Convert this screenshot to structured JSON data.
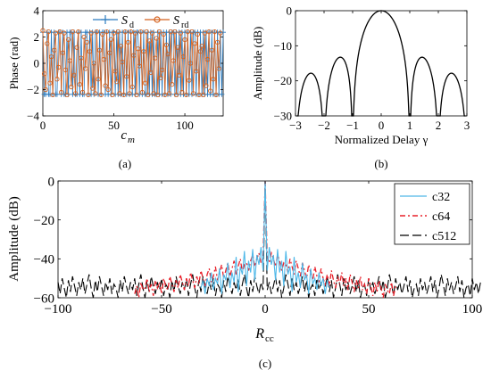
{
  "panels": {
    "a": {
      "caption": "(a)"
    },
    "b": {
      "caption": "(b)"
    },
    "c": {
      "caption": "(c)"
    }
  },
  "chart_data": [
    {
      "id": "a",
      "type": "line",
      "xlabel": "c",
      "xlabel_sub": "m",
      "ylabel": "Phase (rad)",
      "xlim": [
        0,
        127
      ],
      "ylim": [
        -4,
        4
      ],
      "xticks": [
        0,
        50,
        100
      ],
      "yticks": [
        -4,
        -2,
        0,
        2,
        4
      ],
      "grid": false,
      "legend": "top-center",
      "x_step": 1,
      "series": [
        {
          "name": "S",
          "name_sub": "d",
          "color": "#2b7bbf",
          "marker": "plus",
          "values": [
            2.36,
            -2.36,
            -2.36,
            2.36,
            -2.36,
            -2.36,
            2.36,
            -2.36,
            2.36,
            -2.36,
            -2.36,
            2.36,
            2.36,
            -2.36,
            2.36,
            -2.36,
            -2.36,
            2.36,
            -2.36,
            2.36,
            2.36,
            -2.36,
            2.36,
            -2.36,
            -2.36,
            2.36,
            -2.36,
            2.36,
            -2.36,
            -2.36,
            2.36,
            2.36,
            -2.36,
            2.36,
            -2.36,
            2.36,
            -2.36,
            2.36,
            2.36,
            -2.36,
            2.36,
            -2.36,
            2.36,
            2.36,
            -2.36,
            2.36,
            -2.36,
            2.36,
            -2.36,
            2.36,
            2.36,
            -2.36,
            2.36,
            -2.36,
            2.36,
            -2.36,
            2.36,
            -2.36,
            2.36,
            -2.36,
            2.36,
            -2.36,
            2.36,
            -2.36,
            2.36,
            -2.36,
            2.36,
            2.36,
            -2.36,
            2.36,
            -2.36,
            2.36,
            -2.36,
            -2.36,
            2.36,
            -2.36,
            2.36,
            -2.36,
            2.36,
            -2.36,
            -2.36,
            2.36,
            -2.36,
            2.36,
            -2.36,
            2.36,
            -2.36,
            2.36,
            -2.36,
            2.36,
            -2.36,
            2.36,
            2.36,
            -2.36,
            2.36,
            -2.36,
            2.36,
            -2.36,
            2.36,
            -2.36,
            2.36,
            -2.36,
            2.36,
            -2.36,
            2.36,
            -2.36,
            2.36,
            2.36,
            -2.36,
            2.36,
            -2.36,
            2.36,
            -2.36,
            2.36,
            -2.36,
            2.36,
            -2.36,
            2.36,
            -2.36,
            2.36,
            -2.36,
            2.36,
            -2.36,
            2.36,
            -2.36,
            2.36,
            -2.36,
            2.36
          ]
        },
        {
          "name": "S",
          "name_sub": "rd",
          "color": "#d4621f",
          "marker": "circle",
          "values": [
            2.5,
            -0.8,
            -2.0,
            1.5,
            2.4,
            -1.5,
            0.5,
            -2.4,
            1.0,
            2.3,
            -1.2,
            -0.3,
            2.4,
            -2.2,
            0.8,
            2.3,
            -0.5,
            -2.4,
            1.8,
            0.2,
            -1.8,
            2.4,
            -0.9,
            -2.3,
            1.2,
            2.4,
            -1.6,
            0.4,
            -2.2,
            2.0,
            -0.4,
            1.6,
            -2.4,
            0.9,
            2.3,
            -1.9,
            0.0,
            -2.3,
            2.4,
            -1.2,
            1.0,
            -2.4,
            2.2,
            0.3,
            -1.7,
            2.4,
            -2.0,
            0.8,
            1.8,
            -2.4,
            2.3,
            -0.6,
            -1.4,
            2.4,
            -2.3,
            1.3,
            0.1,
            -2.4,
            2.4,
            -1.0,
            1.6,
            -2.3,
            2.4,
            -1.8,
            0.6,
            2.3,
            -2.4,
            1.1,
            -0.2,
            2.4,
            -2.2,
            0.9,
            -1.5,
            2.4,
            -2.4,
            1.7,
            -0.7,
            2.3,
            -2.3,
            0.4,
            1.9,
            -2.4,
            2.4,
            -1.1,
            -0.5,
            2.2,
            -2.4,
            1.4,
            0.7,
            -2.3,
            2.4,
            -1.6,
            0.2,
            2.4,
            -2.4,
            1.2,
            -0.9,
            2.3,
            -2.2,
            0.5,
            1.8,
            -2.4,
            2.4,
            -1.3,
            0.0,
            2.4,
            -2.3,
            1.5,
            -0.6,
            2.2,
            -2.4,
            0.9,
            1.3,
            -2.4,
            2.3,
            -1.7,
            0.3,
            2.4,
            -2.1,
            1.0,
            -1.2,
            2.4,
            -2.4,
            1.6,
            -0.4,
            2.3
          ]
        }
      ]
    },
    {
      "id": "b",
      "type": "line",
      "xlabel": "Normalized Delay γ",
      "ylabel": "Amplitude (dB)",
      "xlim": [
        -3,
        3
      ],
      "ylim": [
        -30,
        0
      ],
      "xticks": [
        -3,
        -2,
        -1,
        0,
        1,
        2,
        3
      ],
      "yticks": [
        -30,
        -20,
        -10,
        0
      ],
      "grid": false,
      "series": [
        {
          "color": "#000000",
          "formula": "20*log10(|sinc(x)|)",
          "x_range": [
            -2.95,
            2.95
          ]
        }
      ]
    },
    {
      "id": "c",
      "type": "line",
      "xlabel": "R",
      "xlabel_sub": "cc",
      "ylabel": "Amplitude (dB)",
      "xlim": [
        -100,
        100
      ],
      "ylim": [
        -60,
        0
      ],
      "xticks": [
        -100,
        -50,
        0,
        50,
        100
      ],
      "yticks": [
        -60,
        -40,
        -20,
        0
      ],
      "grid": false,
      "legend": "top-right",
      "series": [
        {
          "name": "c32",
          "color": "#4fb8e8",
          "dash": "solid",
          "x_start": -31,
          "values": [
            -55,
            -51,
            -58,
            -50,
            -54,
            -47,
            -56,
            -50,
            -53,
            -45,
            -58,
            -48,
            -51,
            -42,
            -55,
            -47,
            -52,
            -39,
            -57,
            -44,
            -48,
            -36,
            -54,
            -41,
            -47,
            -35,
            -51,
            -38,
            -43,
            -34,
            -46,
            0,
            -46,
            -34,
            -43,
            -38,
            -51,
            -35,
            -47,
            -41,
            -54,
            -36,
            -48,
            -44,
            -57,
            -39,
            -52,
            -47,
            -55,
            -42,
            -51,
            -48,
            -58,
            -45,
            -53,
            -50,
            -56,
            -47,
            -54,
            -50,
            -58,
            -51,
            -55
          ]
        },
        {
          "name": "c64",
          "color": "#e8202a",
          "dash": "6,3,2,3",
          "x_start": -63,
          "values": [
            -58,
            -54,
            -60,
            -52,
            -56,
            -55,
            -50,
            -57,
            -53,
            -59,
            -51,
            -55,
            -52,
            -58,
            -50,
            -54,
            -56,
            -49,
            -53,
            -57,
            -51,
            -55,
            -48,
            -52,
            -56,
            -50,
            -54,
            -47,
            -51,
            -55,
            -49,
            -53,
            -46,
            -50,
            -54,
            -48,
            -45,
            -52,
            -49,
            -44,
            -51,
            -47,
            -43,
            -50,
            -46,
            -42,
            -49,
            -45,
            -41,
            -48,
            -44,
            -40,
            -47,
            -43,
            -42,
            -46,
            -41,
            -38,
            -44,
            -40,
            -37,
            -42,
            -39,
            0,
            -39,
            -42,
            -37,
            -40,
            -44,
            -38,
            -41,
            -46,
            -42,
            -43,
            -47,
            -40,
            -44,
            -48,
            -41,
            -45,
            -49,
            -42,
            -46,
            -50,
            -43,
            -47,
            -51,
            -44,
            -49,
            -52,
            -45,
            -50,
            -53,
            -48,
            -54,
            -46,
            -51,
            -55,
            -49,
            -53,
            -47,
            -54,
            -50,
            -56,
            -48,
            -52,
            -57,
            -51,
            -55,
            -49,
            -56,
            -53,
            -58,
            -50,
            -54,
            -59,
            -52,
            -57,
            -51,
            -55,
            -60,
            -53,
            -56,
            -58,
            -52,
            -59,
            -54
          ]
        },
        {
          "name": "c512",
          "color": "#000000",
          "dash": "10,4",
          "x_start": -100,
          "values": [
            -52,
            -58,
            -50,
            -55,
            -60,
            -51,
            -57,
            -49,
            -54,
            -59,
            -52,
            -56,
            -50,
            -58,
            -53,
            -48,
            -55,
            -60,
            -51,
            -57,
            -49,
            -54,
            -59,
            -52,
            -56,
            -50,
            -58,
            -53,
            -55,
            -60,
            -51,
            -57,
            -49,
            -54,
            -58,
            -52,
            -56,
            -50,
            -59,
            -53,
            -48,
            -55,
            -60,
            -51,
            -57,
            -49,
            -54,
            -58,
            -52,
            -56,
            -50,
            -59,
            -53,
            -55,
            -60,
            -51,
            -57,
            -49,
            -54,
            -58,
            -52,
            -56,
            -50,
            -59,
            -53,
            -48,
            -55,
            -60,
            -51,
            -57,
            -49,
            -54,
            -58,
            -52,
            -56,
            -50,
            -59,
            -53,
            -55,
            -60,
            -51,
            -57,
            -49,
            -54,
            -58,
            -52,
            -56,
            -50,
            -59,
            -53,
            -48,
            -55,
            -60,
            -51,
            -57,
            -49,
            -54,
            -58,
            -52,
            -56,
            0,
            -56,
            -52,
            -58,
            -54,
            -49,
            -57,
            -51,
            -60,
            -55,
            -48,
            -53,
            -59,
            -50,
            -56,
            -52,
            -58,
            -54,
            -49,
            -57,
            -51,
            -60,
            -55,
            -53,
            -59,
            -50,
            -56,
            -52,
            -58,
            -54,
            -49,
            -57,
            -51,
            -60,
            -55,
            -48,
            -53,
            -59,
            -50,
            -56,
            -52,
            -58,
            -54,
            -49,
            -57,
            -51,
            -60,
            -55,
            -53,
            -59,
            -50,
            -56,
            -52,
            -58,
            -54,
            -49,
            -57,
            -51,
            -60,
            -55,
            -48,
            -53,
            -59,
            -50,
            -56,
            -52,
            -58,
            -54,
            -49,
            -57,
            -51,
            -60,
            -55,
            -53,
            -59,
            -50,
            -56,
            -52,
            -58,
            -54,
            -49,
            -57,
            -51,
            -60,
            -55,
            -48,
            -53,
            -59,
            -50,
            -56,
            -52,
            -58,
            -54,
            -49,
            -57,
            -51,
            -60,
            -55,
            -53,
            -59,
            -50,
            -56,
            -52,
            -58,
            -52
          ]
        }
      ]
    }
  ]
}
